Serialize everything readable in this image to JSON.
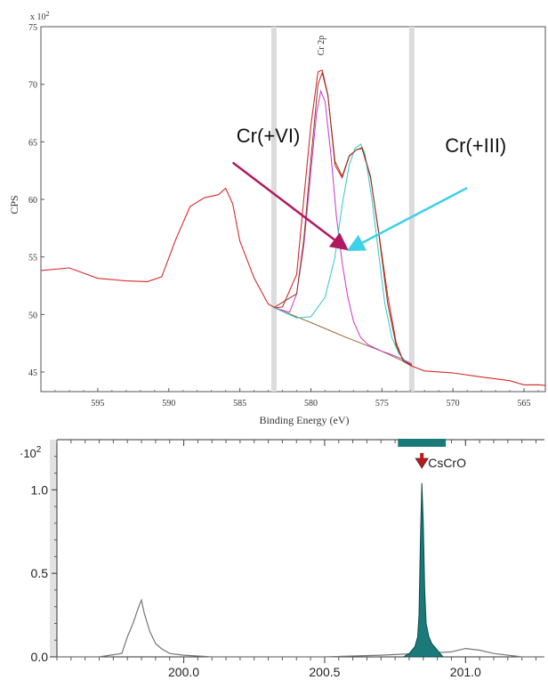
{
  "chart_data": [
    {
      "type": "line",
      "panel": "XPS",
      "xlabel": "Binding Energy (eV)",
      "ylabel": "CPS",
      "y_multiplier": "x 10",
      "y_multiplier_exp": "2",
      "xlim": [
        599,
        563.5
      ],
      "ylim": [
        43.3,
        75
      ],
      "x_reversed": true,
      "xticks": [
        595,
        590,
        585,
        580,
        575,
        570,
        565
      ],
      "yticks": [
        45,
        50,
        55,
        60,
        65,
        70,
        75
      ],
      "peak_label": "Cr 2p",
      "region_markers": [
        582.6,
        572.9
      ],
      "annotations": [
        {
          "text": "Cr(+VI)",
          "arrow_from": [
            585.5,
            63.2
          ],
          "arrow_to": [
            577.6,
            55.8
          ]
        },
        {
          "text": "Cr(+III)",
          "arrow_from": [
            569,
            61.0
          ],
          "arrow_to": [
            577.2,
            55.7
          ]
        }
      ],
      "series": [
        {
          "color": "#d42b2b",
          "x": [
            599,
            597,
            595,
            593,
            591.5,
            590.5,
            589.5,
            588.5,
            587.5,
            586.5,
            586,
            585.5,
            585,
            584,
            583,
            582.5,
            582,
            581,
            580.5,
            580,
            579.5,
            579.2,
            578.8,
            578.3,
            577.8,
            577.3,
            576.8,
            576.4,
            575.8,
            575.2,
            574.6,
            574,
            573.5,
            573,
            572,
            570,
            568,
            566,
            565,
            564,
            563.5
          ],
          "y": [
            54.0,
            53.9,
            53.3,
            52.9,
            52.9,
            53.3,
            56.5,
            59.5,
            60.2,
            60.4,
            60.8,
            59.5,
            56.5,
            53.0,
            50.8,
            50.6,
            50.5,
            53.5,
            60.0,
            66.5,
            71.0,
            71.2,
            69.0,
            63.0,
            62.0,
            63.8,
            64.3,
            64.6,
            62.0,
            57.0,
            51.5,
            47.5,
            46.0,
            45.6,
            45.2,
            44.9,
            44.4,
            44.1,
            43.9,
            43.8,
            43.8
          ]
        },
        {
          "color": "#9a6a3a",
          "x": [
            582.6,
            580,
            577.5,
            575,
            572.9
          ],
          "y": [
            50.6,
            49.3,
            48.0,
            46.8,
            45.6
          ]
        },
        {
          "color": "#cc33cc",
          "x": [
            582.6,
            581.5,
            581,
            580.5,
            580,
            579.6,
            579.3,
            579,
            578.6,
            578.2,
            577.8,
            577.4,
            577,
            576.5,
            576,
            575.5,
            575,
            574.5,
            573.5,
            572.9
          ],
          "y": [
            50.6,
            50.2,
            51.8,
            56.0,
            62.5,
            67.5,
            69.4,
            68.5,
            64.0,
            58.5,
            54.5,
            51.5,
            49.4,
            48.0,
            47.4,
            47.1,
            46.8,
            46.6,
            46.1,
            45.7
          ]
        },
        {
          "color": "#2ec8cc",
          "x": [
            582.6,
            581,
            580,
            579,
            578.3,
            577.8,
            577.3,
            576.9,
            576.5,
            576.2,
            575.7,
            575.2,
            574.8,
            574.3,
            573.8,
            573.3,
            572.9
          ],
          "y": [
            50.6,
            49.7,
            49.8,
            51.5,
            55.0,
            59.5,
            63.0,
            64.4,
            64.8,
            64.0,
            60.0,
            55.0,
            51.0,
            48.0,
            46.6,
            45.9,
            45.6
          ]
        },
        {
          "color": "#8a3a22",
          "x": [
            582.6,
            581,
            580.5,
            580,
            579.5,
            579.2,
            578.8,
            578.3,
            577.8,
            577.3,
            576.8,
            576.4,
            575.8,
            575.2,
            574.6,
            574,
            573.5,
            572.9
          ],
          "y": [
            50.6,
            51.8,
            56.5,
            63.5,
            70.0,
            71.0,
            69.0,
            63.3,
            62.0,
            63.8,
            64.3,
            64.5,
            62.0,
            56.8,
            51.0,
            47.3,
            46.0,
            45.6
          ]
        }
      ]
    },
    {
      "type": "line",
      "panel": "mass-spectrum",
      "xlim": [
        199.55,
        201.28
      ],
      "ylim": [
        0,
        1.3
      ],
      "xticks": [
        200.0,
        200.5,
        201.0
      ],
      "xtick_labels": [
        "200.0",
        "200.5",
        "201.0"
      ],
      "yticks": [
        0.0,
        0.5,
        1.0
      ],
      "ytick_labels": [
        "0.0",
        "0.5",
        "1.0"
      ],
      "y_multiplier": "·10",
      "y_multiplier_exp": "2",
      "marker_label": "CsCrO",
      "marker_x": 200.845,
      "marker_bar": [
        200.76,
        200.93
      ],
      "series": [
        {
          "color": "#777777",
          "x": [
            199.55,
            199.7,
            199.78,
            199.8,
            199.82,
            199.84,
            199.85,
            199.86,
            199.88,
            199.9,
            199.92,
            199.95,
            200.0,
            200.1,
            200.3,
            200.5,
            200.7,
            200.95,
            201.0,
            201.05,
            201.1,
            201.2,
            201.28
          ],
          "y": [
            0.0,
            0.0,
            0.02,
            0.12,
            0.2,
            0.3,
            0.34,
            0.26,
            0.15,
            0.08,
            0.05,
            0.02,
            0.01,
            0.0,
            0.0,
            0.0,
            0.01,
            0.03,
            0.05,
            0.04,
            0.02,
            0.0,
            0.0
          ]
        },
        {
          "color": "#1a7a7a",
          "fill": true,
          "x": [
            200.78,
            200.8,
            200.82,
            200.83,
            200.835,
            200.84,
            200.845,
            200.85,
            200.855,
            200.86,
            200.87,
            200.88,
            200.9,
            200.92
          ],
          "y": [
            0.0,
            0.02,
            0.06,
            0.12,
            0.25,
            0.7,
            1.04,
            0.8,
            0.4,
            0.2,
            0.12,
            0.08,
            0.04,
            0.0
          ]
        }
      ]
    }
  ]
}
